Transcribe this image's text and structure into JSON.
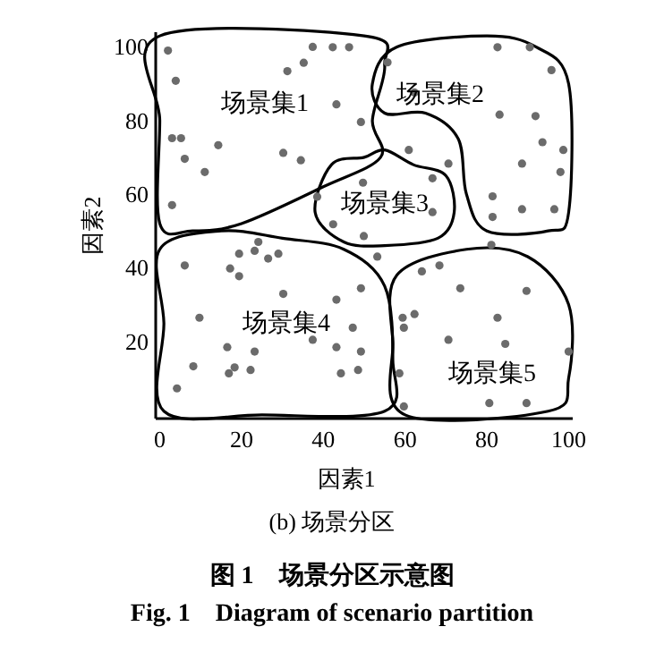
{
  "chart_data": {
    "type": "scatter",
    "xlabel": "因素1",
    "ylabel": "因素2",
    "xlim": [
      -1,
      101
    ],
    "ylim": [
      -1,
      104
    ],
    "xticks": [
      0,
      20,
      40,
      60,
      80,
      100
    ],
    "yticks": [
      20,
      40,
      60,
      80,
      100
    ],
    "grid": false,
    "marker": "circle",
    "series": [
      {
        "color": "#6b6b6b",
        "x": [
          2,
          3.9,
          3,
          5.2,
          6.1,
          11,
          14.3,
          3,
          31.2,
          35.2,
          37.4,
          42.3,
          46.3,
          43.2,
          49.2,
          30.2,
          34.5,
          38.5,
          42.4,
          49.7,
          55.7,
          62.3,
          82.6,
          90.5,
          95.8,
          83.1,
          91.9,
          93.6,
          98.7,
          60.9,
          70.6,
          88.6,
          98,
          66.7,
          81.4,
          88.6,
          96.5,
          81.4,
          66.7,
          49.9,
          24.1,
          19.4,
          23.2,
          26.5,
          29,
          6.1,
          17.2,
          19.4,
          30.2,
          43.2,
          49.2,
          9.7,
          47.2,
          37.4,
          16.5,
          23.2,
          43.2,
          49.2,
          8.2,
          18.3,
          16.9,
          22.2,
          44.3,
          48.5,
          4.2,
          53.2,
          64.1,
          68.4,
          81.1,
          73.5,
          89.7,
          59.4,
          62.3,
          59.7,
          82.6,
          70.6,
          84.5,
          100,
          58.6,
          59.7,
          80.6,
          89.7
        ],
        "values": [
          99,
          90.8,
          75.2,
          75.2,
          69.6,
          66,
          73.3,
          57,
          93.4,
          95.7,
          100,
          99.9,
          99.9,
          84.4,
          79.6,
          71.2,
          69.2,
          59.3,
          51.8,
          63.1,
          95.8,
          87.6,
          99.9,
          99.9,
          93.7,
          81.6,
          81.2,
          74.1,
          72,
          72,
          68.3,
          68.3,
          66,
          64.3,
          59.4,
          55.9,
          55.9,
          53.8,
          55.1,
          48.6,
          47,
          43.8,
          44.6,
          42.5,
          43.8,
          40.6,
          39.8,
          37.7,
          32.9,
          31.3,
          34.4,
          26.4,
          23.7,
          20.4,
          18.4,
          17.2,
          18.4,
          17.2,
          13.2,
          12.9,
          11.3,
          12.2,
          11.3,
          12.2,
          7.2,
          43,
          39,
          40.6,
          46.2,
          34.4,
          33.7,
          26.4,
          27.4,
          23.7,
          26.4,
          20.4,
          19.3,
          17.2,
          11.3,
          2.3,
          3.2,
          3.2
        ]
      }
    ],
    "annotations": [
      "场景集1",
      "场景集2",
      "场景集3",
      "场景集4",
      "场景集5",
      "(b) 场景分区",
      "图 1　场景分区示意图",
      "Fig. 1　Diagram of scenario partition"
    ]
  }
}
